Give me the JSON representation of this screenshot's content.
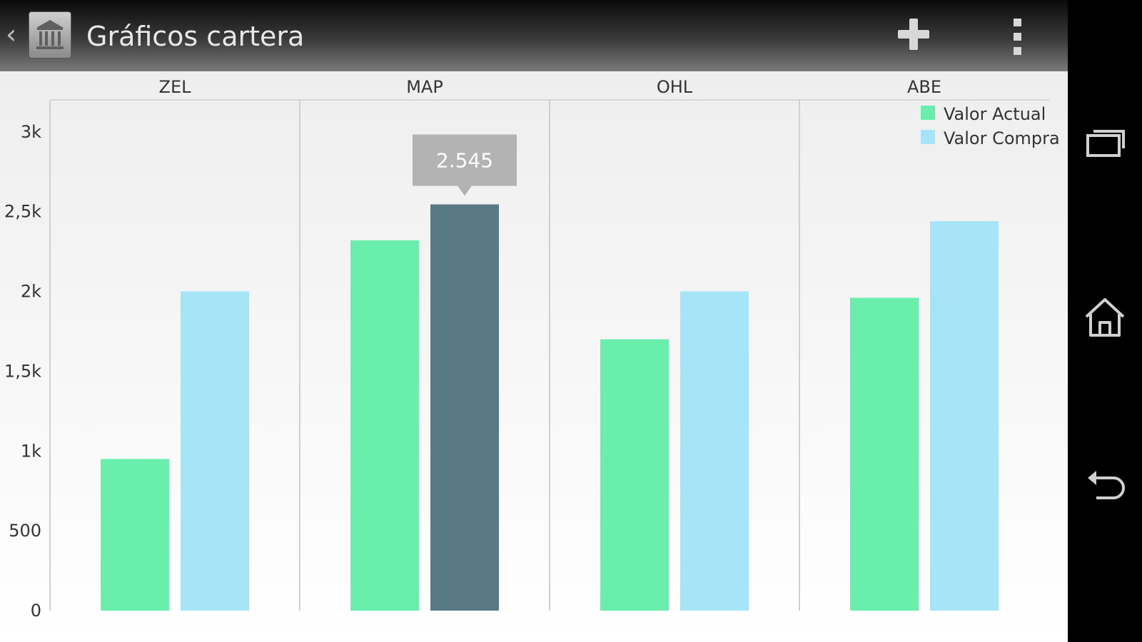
{
  "actionbar": {
    "title": "Gráficos cartera",
    "back_icon": "chevron-left-icon",
    "app_icon": "bank-building-icon",
    "add_icon": "plus-icon",
    "menu_icon": "overflow-menu-icon"
  },
  "navbar": {
    "icons": [
      "recent-apps-icon",
      "home-icon",
      "back-icon"
    ]
  },
  "chart_data": {
    "type": "bar",
    "categories": [
      "ZEL",
      "MAP",
      "OHL",
      "ABE"
    ],
    "series": [
      {
        "name": "Valor Actual",
        "color": "#69efab",
        "values": [
          950,
          2320,
          1700,
          1960
        ]
      },
      {
        "name": "Valor Compra",
        "color": "#a6e5f8",
        "values": [
          2000,
          2545,
          2000,
          2440
        ]
      }
    ],
    "ylim": [
      0,
      3200
    ],
    "yticks": [
      0,
      500,
      1000,
      1500,
      2000,
      2500,
      3000
    ],
    "ytick_labels": [
      "0",
      "500",
      "1k",
      "1,5k",
      "2k",
      "2,5k",
      "3k"
    ],
    "legend_position": "top-right",
    "grid": "vertical category separators",
    "selected": {
      "series": 1,
      "category": 1,
      "color": "#587985",
      "tooltip": "2.545"
    }
  }
}
